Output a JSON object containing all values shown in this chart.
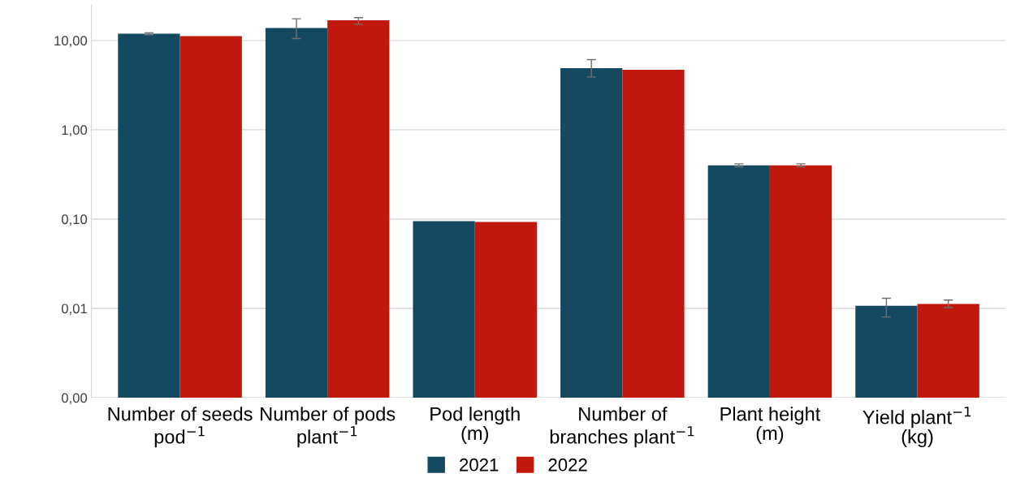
{
  "chart_data": {
    "type": "bar",
    "log": "y",
    "grid": "y",
    "legend": "bottom",
    "categories": [
      "Number of seeds\npod$^{−1}$",
      "Number of pods\nplant$^{−1}$",
      "Pod length\n(m)",
      "Number of\nbranches plant$^{−1}$",
      "Plant height\n(m)",
      "Yield plant$^{−1}$\n(kg)"
    ],
    "series": [
      {
        "name": "2021",
        "color": "#154962",
        "values": [
          11.9,
          13.8,
          0.095,
          4.9,
          0.4,
          0.0107
        ],
        "errors": [
          [
            11.6,
            12.2
          ],
          [
            10.5,
            17.5
          ],
          null,
          [
            3.9,
            6.1
          ],
          [
            0.385,
            0.415
          ],
          [
            0.008,
            0.013
          ]
        ]
      },
      {
        "name": "2022",
        "color": "#c0180c",
        "values": [
          11.2,
          16.8,
          0.093,
          4.7,
          0.4,
          0.0112
        ],
        "errors": [
          null,
          [
            15.2,
            18.0
          ],
          null,
          null,
          [
            0.385,
            0.415
          ],
          [
            0.0102,
            0.0124
          ]
        ]
      }
    ],
    "ylim": [
      0.001,
      25
    ],
    "yticks": [
      {
        "value": 0.001,
        "label": "0,00"
      },
      {
        "value": 0.01,
        "label": "0,01"
      },
      {
        "value": 0.1,
        "label": "0,10"
      },
      {
        "value": 1,
        "label": "1,00"
      },
      {
        "value": 10,
        "label": "10,00"
      }
    ]
  }
}
